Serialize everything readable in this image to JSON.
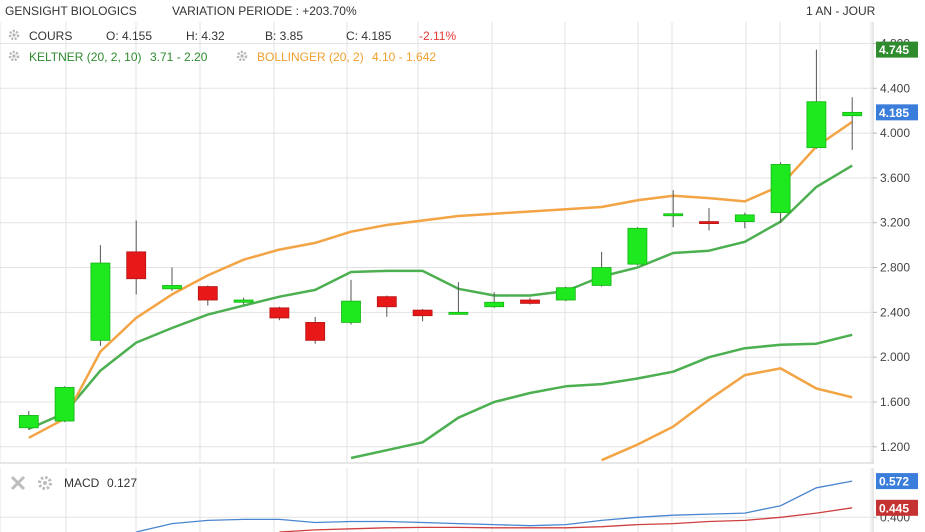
{
  "header": {
    "instrument": "GENSIGHT BIOLOGICS",
    "variation": "VARIATION PERIODE : +203.70%",
    "period": "1 AN - JOUR"
  },
  "ohlc": {
    "label": "COURS",
    "open": "O: 4.155",
    "high": "H: 4.32",
    "low": "B: 3.85",
    "close": "C: 4.185",
    "change": "-2.11%"
  },
  "keltner": {
    "label": "KELTNER (20, 2, 10)",
    "values": "3.71 - 2.20"
  },
  "bollinger": {
    "label": "BOLLINGER (20, 2)",
    "values": "4.10 - 1.642"
  },
  "macd": {
    "label": "MACD",
    "value": "0.127"
  },
  "colors": {
    "up": "#1ee81e",
    "down": "#e81818",
    "keltner": "#4caf50",
    "bollinger": "#f3a445",
    "macd_line": "#4a86d0",
    "signal_line": "#d04040",
    "grid": "#e3e3e3"
  },
  "chart_data": [
    {
      "type": "candlestick",
      "ylim": [
        1.1,
        4.92
      ],
      "y_ticks": [
        "4.800",
        "4.400",
        "4.000",
        "3.600",
        "3.200",
        "2.800",
        "2.400",
        "2.000",
        "1.600",
        "1.200"
      ],
      "y_tick_values": [
        4.8,
        4.4,
        4.0,
        3.6,
        3.2,
        2.8,
        2.4,
        2.0,
        1.6,
        1.2
      ],
      "price_tags": [
        {
          "label": "4.745",
          "value": 4.745,
          "color": "#2e8b2e"
        },
        {
          "label": "4.185",
          "value": 4.185,
          "color": "#3a7ddb"
        }
      ],
      "candles": [
        {
          "o": 1.37,
          "h": 1.52,
          "l": 1.35,
          "c": 1.48
        },
        {
          "o": 1.43,
          "h": 1.74,
          "l": 1.42,
          "c": 1.73
        },
        {
          "o": 2.15,
          "h": 3.0,
          "l": 2.1,
          "c": 2.84
        },
        {
          "o": 2.94,
          "h": 3.22,
          "l": 2.56,
          "c": 2.7
        },
        {
          "o": 2.61,
          "h": 2.8,
          "l": 2.59,
          "c": 2.64
        },
        {
          "o": 2.63,
          "h": 2.64,
          "l": 2.46,
          "c": 2.51
        },
        {
          "o": 2.49,
          "h": 2.53,
          "l": 2.47,
          "c": 2.51
        },
        {
          "o": 2.44,
          "h": 2.45,
          "l": 2.33,
          "c": 2.35
        },
        {
          "o": 2.31,
          "h": 2.36,
          "l": 2.12,
          "c": 2.15
        },
        {
          "o": 2.31,
          "h": 2.69,
          "l": 2.29,
          "c": 2.5
        },
        {
          "o": 2.54,
          "h": 2.55,
          "l": 2.36,
          "c": 2.45
        },
        {
          "o": 2.42,
          "h": 2.43,
          "l": 2.32,
          "c": 2.37
        },
        {
          "o": 2.39,
          "h": 2.67,
          "l": 2.38,
          "c": 2.4
        },
        {
          "o": 2.45,
          "h": 2.58,
          "l": 2.44,
          "c": 2.49
        },
        {
          "o": 2.51,
          "h": 2.53,
          "l": 2.47,
          "c": 2.48
        },
        {
          "o": 2.51,
          "h": 2.63,
          "l": 2.5,
          "c": 2.62
        },
        {
          "o": 2.64,
          "h": 2.94,
          "l": 2.63,
          "c": 2.8
        },
        {
          "o": 2.83,
          "h": 3.16,
          "l": 2.82,
          "c": 3.15
        },
        {
          "o": 3.28,
          "h": 3.49,
          "l": 3.16,
          "c": 3.28
        },
        {
          "o": 3.21,
          "h": 3.33,
          "l": 3.13,
          "c": 3.2
        },
        {
          "o": 3.21,
          "h": 3.29,
          "l": 3.15,
          "c": 3.27
        },
        {
          "o": 3.29,
          "h": 3.74,
          "l": 3.2,
          "c": 3.72
        },
        {
          "o": 3.87,
          "h": 4.745,
          "l": 3.86,
          "c": 4.28
        },
        {
          "o": 4.155,
          "h": 4.32,
          "l": 3.85,
          "c": 4.185
        }
      ],
      "bollinger_upper": [
        1.28,
        1.45,
        2.05,
        2.35,
        2.56,
        2.73,
        2.87,
        2.96,
        3.02,
        3.12,
        3.18,
        3.22,
        3.26,
        3.28,
        3.3,
        3.32,
        3.34,
        3.4,
        3.44,
        3.42,
        3.39,
        3.53,
        3.88,
        4.1
      ],
      "bollinger_lower": [
        null,
        null,
        null,
        null,
        null,
        null,
        null,
        null,
        null,
        null,
        null,
        null,
        null,
        null,
        null,
        null,
        1.08,
        1.22,
        1.38,
        1.62,
        1.84,
        1.9,
        1.72,
        1.642
      ],
      "keltner_upper": [
        1.36,
        1.5,
        1.88,
        2.13,
        2.26,
        2.38,
        2.46,
        2.54,
        2.6,
        2.76,
        2.77,
        2.77,
        2.61,
        2.55,
        2.55,
        2.59,
        2.72,
        2.8,
        2.93,
        2.95,
        3.03,
        3.21,
        3.52,
        3.71
      ],
      "keltner_lower": [
        null,
        null,
        null,
        null,
        null,
        null,
        null,
        null,
        null,
        1.1,
        1.17,
        1.24,
        1.46,
        1.6,
        1.68,
        1.74,
        1.76,
        1.81,
        1.87,
        2.0,
        2.08,
        2.11,
        2.12,
        2.2
      ]
    },
    {
      "type": "line",
      "ylim": [
        0.33,
        0.62
      ],
      "y_ticks": [
        "0.400"
      ],
      "y_tick_values": [
        0.4
      ],
      "price_tags": [
        {
          "label": "0.572",
          "value": 0.572,
          "color": "#3a7ddb"
        },
        {
          "label": "0.445",
          "value": 0.445,
          "color": "#c43232"
        }
      ],
      "series": [
        {
          "values": [
            null,
            null,
            null,
            0.33,
            0.37,
            0.385,
            0.39,
            0.39,
            0.375,
            0.38,
            0.38,
            0.375,
            0.37,
            0.365,
            0.36,
            0.365,
            0.385,
            0.4,
            0.41,
            0.415,
            0.42,
            0.455,
            0.54,
            0.572
          ]
        },
        {
          "values": [
            null,
            null,
            null,
            null,
            null,
            null,
            null,
            0.33,
            0.34,
            0.345,
            0.35,
            0.352,
            0.352,
            0.35,
            0.35,
            0.35,
            0.355,
            0.365,
            0.37,
            0.38,
            0.385,
            0.4,
            0.42,
            0.445
          ]
        }
      ]
    }
  ]
}
